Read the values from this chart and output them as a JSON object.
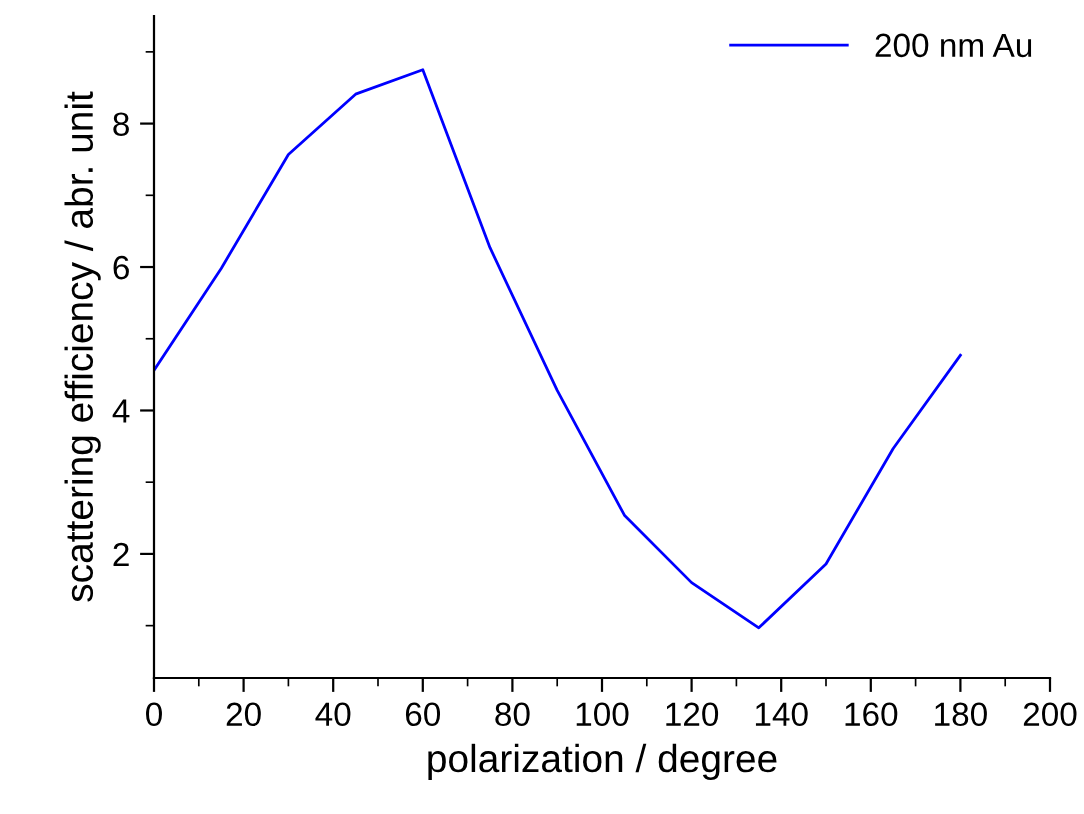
{
  "chart_data": {
    "type": "line",
    "xlabel": "polarization / degree",
    "ylabel": "scattering efficiency / abr. unit",
    "x": [
      0,
      15,
      30,
      45,
      60,
      75,
      90,
      105,
      120,
      135,
      150,
      165,
      180
    ],
    "series": [
      {
        "name": "200 nm Au",
        "color": "#0000ff",
        "values": [
          4.56,
          5.98,
          7.57,
          8.41,
          8.75,
          6.27,
          4.28,
          2.54,
          1.6,
          0.97,
          1.86,
          3.47,
          4.77
        ]
      }
    ],
    "xlim": [
      0,
      200
    ],
    "xticks": [
      0,
      20,
      40,
      60,
      80,
      100,
      120,
      140,
      160,
      180,
      200
    ],
    "ylim": [
      0.27,
      9.5
    ],
    "yticks": [
      2,
      4,
      6,
      8
    ],
    "grid": false,
    "legend": "top right",
    "marker": "none",
    "line_style": "solid"
  }
}
